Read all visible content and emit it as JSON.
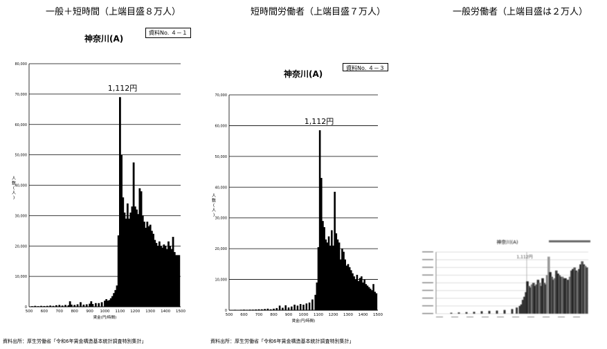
{
  "headings": {
    "left": "一般＋短時間（上端目盛８万人）",
    "middle": "短時間労働者（上端目盛７万人）",
    "right": "一般労働者（上端目盛は２万人）"
  },
  "source_text": "資料出所：厚生労働省「令和6年賃金構造基本統計調査特別集計」",
  "chart_data": [
    {
      "type": "bar",
      "title": "神奈川(A)",
      "doc_label": "資料No. ４－１",
      "annotation": "1,112円",
      "xlabel": "賃金(円/時間)",
      "ylabel": "人数(人)",
      "ylim": [
        0,
        80000
      ],
      "yticks": [
        "0",
        "10,000",
        "20,000",
        "30,000",
        "40,000",
        "50,000",
        "60,000",
        "70,000",
        "80,000"
      ],
      "xlim": [
        500,
        1500
      ],
      "xticks": [
        "500",
        "600",
        "700",
        "800",
        "900",
        "1000",
        "1100",
        "1200",
        "1300",
        "1400",
        "1500"
      ],
      "grid": true,
      "x": [
        1090,
        1100,
        1110,
        1120,
        1130,
        1140,
        1150,
        1160,
        1170,
        1180,
        1190,
        1200,
        1210,
        1220,
        1230,
        1240,
        1250,
        1260,
        1270,
        1280,
        1290,
        1300,
        1310,
        1320,
        1330,
        1340,
        1350,
        1360,
        1370,
        1380,
        1390,
        1400,
        1410,
        1420,
        1430,
        1440,
        1450,
        1460,
        1470,
        1480,
        1490
      ],
      "values": [
        23500,
        69000,
        50000,
        36000,
        31000,
        29000,
        34000,
        29000,
        31000,
        33000,
        47500,
        33000,
        32000,
        30500,
        39000,
        38000,
        30000,
        28000,
        26000,
        28000,
        26500,
        27000,
        25000,
        24000,
        22000,
        21000,
        20000,
        21500,
        20000,
        19500,
        20500,
        20000,
        19000,
        21500,
        20000,
        19000,
        23000,
        18000,
        17000,
        17000,
        17000
      ],
      "low_x": [
        520,
        540,
        560,
        580,
        600,
        620,
        640,
        660,
        680,
        700,
        720,
        740,
        760,
        770,
        780,
        800,
        820,
        840,
        860,
        880,
        900,
        910,
        920,
        940,
        960,
        980,
        1000,
        1010,
        1020,
        1030,
        1040,
        1050,
        1060,
        1070,
        1080
      ],
      "low_values": [
        200,
        300,
        200,
        300,
        250,
        300,
        400,
        300,
        500,
        600,
        400,
        600,
        500,
        1800,
        700,
        600,
        800,
        1500,
        700,
        800,
        1000,
        1800,
        900,
        1200,
        1200,
        1500,
        2000,
        2500,
        2000,
        2200,
        2800,
        3500,
        4500,
        5500,
        7000
      ]
    },
    {
      "type": "bar",
      "title": "神奈川(A)",
      "doc_label": "資料No. ４－３",
      "annotation": "1,112円",
      "xlabel": "賃金(円/時間)",
      "ylabel": "人数(人)",
      "ylim": [
        0,
        70000
      ],
      "yticks": [
        "0",
        "10,000",
        "20,000",
        "30,000",
        "40,000",
        "50,000",
        "60,000",
        "70,000"
      ],
      "xlim": [
        500,
        1500
      ],
      "xticks": [
        "500",
        "600",
        "700",
        "800",
        "900",
        "1000",
        "1100",
        "1200",
        "1300",
        "1400",
        "1500"
      ],
      "grid": true,
      "x": [
        1090,
        1100,
        1110,
        1120,
        1130,
        1140,
        1150,
        1160,
        1170,
        1180,
        1190,
        1200,
        1210,
        1220,
        1230,
        1240,
        1250,
        1260,
        1270,
        1280,
        1290,
        1300,
        1310,
        1320,
        1330,
        1340,
        1350,
        1360,
        1370,
        1380,
        1390,
        1400,
        1410,
        1420,
        1430,
        1440,
        1450,
        1460,
        1470,
        1480,
        1490
      ],
      "values": [
        9000,
        20500,
        58500,
        43000,
        29000,
        27000,
        23000,
        22000,
        24000,
        21000,
        26000,
        21000,
        38500,
        25000,
        23000,
        22000,
        16500,
        20000,
        19000,
        16500,
        14500,
        15000,
        14000,
        13000,
        12000,
        11000,
        10000,
        11500,
        9500,
        10500,
        11000,
        9000,
        10000,
        8500,
        8000,
        7500,
        7000,
        6500,
        8500,
        6000,
        5500
      ],
      "low_x": [
        520,
        540,
        560,
        580,
        600,
        620,
        640,
        660,
        680,
        700,
        720,
        740,
        760,
        780,
        800,
        820,
        840,
        860,
        880,
        900,
        920,
        940,
        960,
        980,
        1000,
        1020,
        1040,
        1060,
        1080
      ],
      "low_values": [
        100,
        150,
        100,
        150,
        200,
        150,
        200,
        200,
        250,
        300,
        300,
        400,
        500,
        300,
        500,
        700,
        1500,
        800,
        1600,
        900,
        1200,
        1800,
        1500,
        2000,
        1800,
        2200,
        2500,
        3500,
        5000
      ]
    },
    {
      "type": "bar",
      "title": "神奈川(A)",
      "annotation": "1,112円",
      "ylim": [
        0,
        20000
      ],
      "grid": true,
      "x": [
        1100,
        1110,
        1120,
        1130,
        1140,
        1150,
        1160,
        1170,
        1180,
        1190,
        1200,
        1210,
        1220,
        1230,
        1240,
        1250,
        1260,
        1270,
        1280,
        1290,
        1300,
        1310,
        1320,
        1330,
        1340,
        1350,
        1360,
        1370,
        1380,
        1390,
        1400,
        1410,
        1420,
        1430,
        1440,
        1450,
        1460,
        1470,
        1480,
        1490
      ],
      "values": [
        10500,
        9000,
        8500,
        9500,
        10000,
        9000,
        9500,
        11000,
        10000,
        9000,
        11500,
        10000,
        9500,
        12500,
        18500,
        13500,
        12000,
        11000,
        11500,
        14000,
        13000,
        12500,
        12000,
        12000,
        11500,
        11500,
        11000,
        11000,
        12000,
        14000,
        14500,
        15000,
        14000,
        13500,
        14500,
        16000,
        17000,
        16000,
        15500,
        15000
      ],
      "low_x": [
        600,
        650,
        700,
        750,
        800,
        850,
        900,
        950,
        1000,
        1030,
        1050,
        1060,
        1070,
        1080,
        1090
      ],
      "low_values": [
        300,
        400,
        500,
        600,
        800,
        900,
        1000,
        1200,
        1500,
        2000,
        2500,
        3000,
        4500,
        5500,
        7000
      ]
    }
  ]
}
